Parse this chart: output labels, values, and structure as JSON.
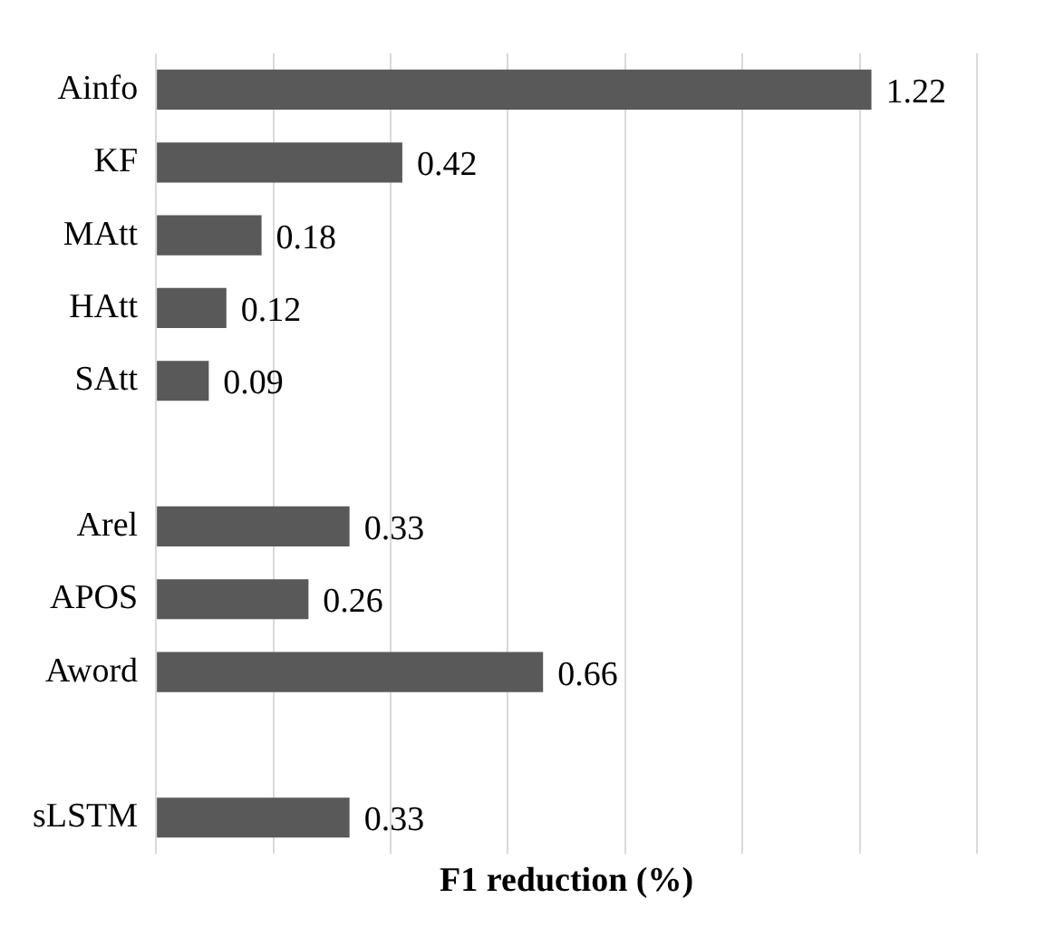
{
  "chart_data": {
    "type": "bar",
    "orientation": "horizontal",
    "xlabel": "F1 reduction (%)",
    "categories": [
      "Ainfo",
      "KF",
      "MAtt",
      "HAtt",
      "SAtt",
      null,
      "Arel",
      "APOS",
      "Aword",
      null,
      "sLSTM"
    ],
    "values": [
      1.22,
      0.42,
      0.18,
      0.12,
      0.09,
      null,
      0.33,
      0.26,
      0.66,
      null,
      0.33
    ],
    "color": "#595959",
    "xlim": [
      0,
      1.4
    ],
    "xticks": [
      {
        "value": 0,
        "label": null
      },
      {
        "value": 0.2,
        "label": null
      },
      {
        "value": 0.4,
        "label": null
      },
      {
        "value": 0.6,
        "label": null
      },
      {
        "value": 0.8,
        "label": null
      },
      {
        "value": 1.0,
        "label": null
      },
      {
        "value": 1.2,
        "label": null
      },
      {
        "value": 1.4,
        "label": null
      }
    ],
    "grid": "x",
    "tick_labels": "y",
    "data_labels": true,
    "legend": false
  }
}
